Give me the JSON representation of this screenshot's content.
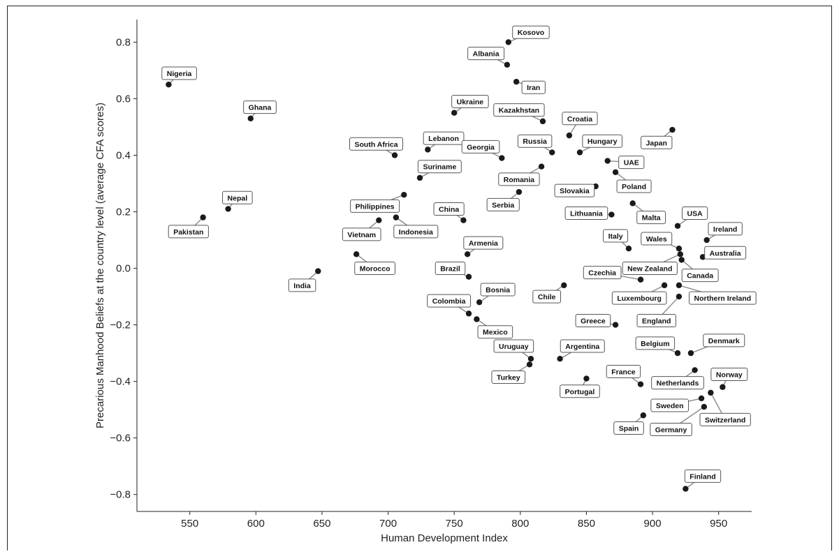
{
  "chart_data": {
    "type": "scatter",
    "title": "",
    "xlabel": "Human Development Index",
    "ylabel": "Precarious Manhood Beliefs at the country level (average CFA scores)",
    "xlim": [
      510,
      975
    ],
    "ylim": [
      -0.86,
      0.88
    ],
    "x_ticks": [
      550,
      600,
      650,
      700,
      750,
      800,
      850,
      900,
      950
    ],
    "y_ticks": [
      -0.8,
      -0.6,
      -0.4,
      -0.2,
      0.0,
      0.2,
      0.4,
      0.6,
      0.8
    ],
    "x_tick_labels": [
      "550",
      "600",
      "650",
      "700",
      "750",
      "800",
      "850",
      "900",
      "950"
    ],
    "y_tick_labels": [
      "−0.8",
      "−0.6",
      "−0.4",
      "−0.2",
      "0.0",
      "0.2",
      "0.4",
      "0.6",
      "0.8"
    ],
    "grid": false,
    "points": [
      {
        "label": "Nigeria",
        "x": 534,
        "y": 0.65,
        "lx": 542,
        "ly": 0.69
      },
      {
        "label": "Ghana",
        "x": 596,
        "y": 0.53,
        "lx": 603,
        "ly": 0.57
      },
      {
        "label": "Nepal",
        "x": 579,
        "y": 0.21,
        "lx": 586,
        "ly": 0.25
      },
      {
        "label": "Pakistan",
        "x": 560,
        "y": 0.18,
        "lx": 549,
        "ly": 0.13
      },
      {
        "label": "India",
        "x": 647,
        "y": -0.01,
        "lx": 635,
        "ly": -0.06
      },
      {
        "label": "Morocco",
        "x": 676,
        "y": 0.05,
        "lx": 690,
        "ly": 0.0
      },
      {
        "label": "Vietnam",
        "x": 693,
        "y": 0.17,
        "lx": 680,
        "ly": 0.12
      },
      {
        "label": "Philippines",
        "x": 712,
        "y": 0.26,
        "lx": 690,
        "ly": 0.22
      },
      {
        "label": "Indonesia",
        "x": 706,
        "y": 0.18,
        "lx": 721,
        "ly": 0.13
      },
      {
        "label": "South Africa",
        "x": 705,
        "y": 0.4,
        "lx": 691,
        "ly": 0.44
      },
      {
        "label": "Suriname",
        "x": 724,
        "y": 0.32,
        "lx": 739,
        "ly": 0.36
      },
      {
        "label": "Lebanon",
        "x": 730,
        "y": 0.42,
        "lx": 742,
        "ly": 0.46
      },
      {
        "label": "Ukraine",
        "x": 750,
        "y": 0.55,
        "lx": 762,
        "ly": 0.59
      },
      {
        "label": "China",
        "x": 757,
        "y": 0.17,
        "lx": 746,
        "ly": 0.21
      },
      {
        "label": "Armenia",
        "x": 760,
        "y": 0.05,
        "lx": 772,
        "ly": 0.09
      },
      {
        "label": "Brazil",
        "x": 761,
        "y": -0.03,
        "lx": 747,
        "ly": 0.0
      },
      {
        "label": "Colombia",
        "x": 761,
        "y": -0.16,
        "lx": 746,
        "ly": -0.115
      },
      {
        "label": "Bosnia",
        "x": 769,
        "y": -0.12,
        "lx": 783,
        "ly": -0.075
      },
      {
        "label": "Mexico",
        "x": 767,
        "y": -0.18,
        "lx": 781,
        "ly": -0.225
      },
      {
        "label": "Georgia",
        "x": 786,
        "y": 0.39,
        "lx": 770,
        "ly": 0.43
      },
      {
        "label": "Kosovo",
        "x": 791,
        "y": 0.8,
        "lx": 808,
        "ly": 0.835
      },
      {
        "label": "Albania",
        "x": 790,
        "y": 0.72,
        "lx": 774,
        "ly": 0.76
      },
      {
        "label": "Iran",
        "x": 797,
        "y": 0.66,
        "lx": 810,
        "ly": 0.64
      },
      {
        "label": "Kazakhstan",
        "x": 817,
        "y": 0.52,
        "lx": 799,
        "ly": 0.56
      },
      {
        "label": "Croatia",
        "x": 837,
        "y": 0.47,
        "lx": 845,
        "ly": 0.53
      },
      {
        "label": "Russia",
        "x": 824,
        "y": 0.41,
        "lx": 811,
        "ly": 0.45
      },
      {
        "label": "Hungary",
        "x": 845,
        "y": 0.41,
        "lx": 862,
        "ly": 0.45
      },
      {
        "label": "Romania",
        "x": 816,
        "y": 0.36,
        "lx": 799,
        "ly": 0.315
      },
      {
        "label": "Serbia",
        "x": 799,
        "y": 0.27,
        "lx": 787,
        "ly": 0.225
      },
      {
        "label": "Slovakia",
        "x": 857,
        "y": 0.29,
        "lx": 841,
        "ly": 0.275
      },
      {
        "label": "UAE",
        "x": 866,
        "y": 0.38,
        "lx": 884,
        "ly": 0.375
      },
      {
        "label": "Poland",
        "x": 872,
        "y": 0.34,
        "lx": 886,
        "ly": 0.29
      },
      {
        "label": "Lithuania",
        "x": 869,
        "y": 0.19,
        "lx": 850,
        "ly": 0.195
      },
      {
        "label": "Malta",
        "x": 885,
        "y": 0.23,
        "lx": 899,
        "ly": 0.18
      },
      {
        "label": "Japan",
        "x": 915,
        "y": 0.49,
        "lx": 903,
        "ly": 0.445
      },
      {
        "label": "Italy",
        "x": 882,
        "y": 0.07,
        "lx": 872,
        "ly": 0.115
      },
      {
        "label": "Wales",
        "x": 920,
        "y": 0.07,
        "lx": 903,
        "ly": 0.105
      },
      {
        "label": "USA",
        "x": 919,
        "y": 0.15,
        "lx": 932,
        "ly": 0.195
      },
      {
        "label": "Ireland",
        "x": 941,
        "y": 0.1,
        "lx": 955,
        "ly": 0.14
      },
      {
        "label": "Australia",
        "x": 938,
        "y": 0.04,
        "lx": 955,
        "ly": 0.055
      },
      {
        "label": "New Zealand",
        "x": 921,
        "y": 0.05,
        "lx": 898,
        "ly": 0.0
      },
      {
        "label": "Canada",
        "x": 922,
        "y": 0.03,
        "lx": 936,
        "ly": -0.025
      },
      {
        "label": "Czechia",
        "x": 891,
        "y": -0.04,
        "lx": 862,
        "ly": -0.015
      },
      {
        "label": "Chile",
        "x": 833,
        "y": -0.06,
        "lx": 820,
        "ly": -0.1
      },
      {
        "label": "Luxembourg",
        "x": 909,
        "y": -0.06,
        "lx": 890,
        "ly": -0.105
      },
      {
        "label": "Northern Ireland",
        "x": 920,
        "y": -0.06,
        "lx": 953,
        "ly": -0.105
      },
      {
        "label": "England",
        "x": 920,
        "y": -0.1,
        "lx": 903,
        "ly": -0.185
      },
      {
        "label": "Greece",
        "x": 872,
        "y": -0.2,
        "lx": 855,
        "ly": -0.185
      },
      {
        "label": "Belgium",
        "x": 919,
        "y": -0.3,
        "lx": 902,
        "ly": -0.265
      },
      {
        "label": "Denmark",
        "x": 929,
        "y": -0.3,
        "lx": 954,
        "ly": -0.255
      },
      {
        "label": "Uruguay",
        "x": 808,
        "y": -0.32,
        "lx": 795,
        "ly": -0.275
      },
      {
        "label": "Argentina",
        "x": 830,
        "y": -0.32,
        "lx": 847,
        "ly": -0.275
      },
      {
        "label": "Turkey",
        "x": 807,
        "y": -0.34,
        "lx": 791,
        "ly": -0.385
      },
      {
        "label": "Portugal",
        "x": 850,
        "y": -0.39,
        "lx": 845,
        "ly": -0.435
      },
      {
        "label": "France",
        "x": 891,
        "y": -0.41,
        "lx": 878,
        "ly": -0.365
      },
      {
        "label": "Netherlands",
        "x": 932,
        "y": -0.36,
        "lx": 919,
        "ly": -0.405
      },
      {
        "label": "Norway",
        "x": 953,
        "y": -0.42,
        "lx": 958,
        "ly": -0.375
      },
      {
        "label": "Switzerland",
        "x": 944,
        "y": -0.44,
        "lx": 955,
        "ly": -0.535
      },
      {
        "label": "Sweden",
        "x": 937,
        "y": -0.46,
        "lx": 913,
        "ly": -0.485
      },
      {
        "label": "Germany",
        "x": 939,
        "y": -0.49,
        "lx": 914,
        "ly": -0.57
      },
      {
        "label": "Spain",
        "x": 893,
        "y": -0.52,
        "lx": 882,
        "ly": -0.565
      },
      {
        "label": "Finland",
        "x": 925,
        "y": -0.78,
        "lx": 938,
        "ly": -0.735
      }
    ]
  }
}
